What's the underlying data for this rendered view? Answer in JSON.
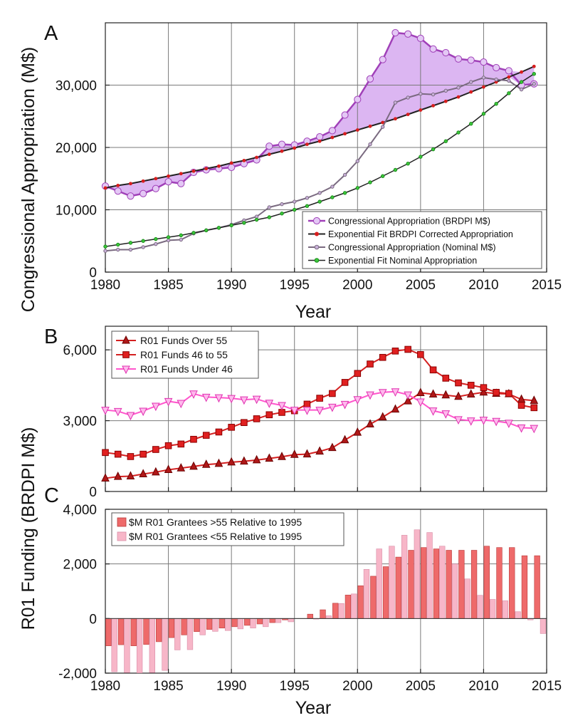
{
  "figure": {
    "ylabel_a": "Congressional Appropriation  (M$)",
    "ylabel_bc": "R01 Funding  (BRDPI M$)",
    "xlabel": "Year"
  },
  "colors": {
    "purple": "#a040b8",
    "purple_fill": "#dcb6f2",
    "purple_nominal": "#7a6a80",
    "black_fit": "#222222",
    "red_marker": "#d81e1e",
    "green_fit": "#1a8c1a",
    "dark_red_marker": "#b01818",
    "red_line": "#d42020",
    "pink_line": "#ff55cc",
    "bar_over": "#ee6a6a",
    "bar_under": "#f7b6c8"
  },
  "chart_data": [
    {
      "panel": "A",
      "type": "line",
      "label": "A",
      "xlabel": "Year",
      "ylabel": "Congressional Appropriation  (M$)",
      "xlim": [
        1980,
        2015
      ],
      "ylim": [
        0,
        40000
      ],
      "xticks": [
        1980,
        1985,
        1990,
        1995,
        2000,
        2005,
        2010,
        2015
      ],
      "yticks": [
        0,
        10000,
        20000,
        30000
      ],
      "ytick_labels": [
        "0",
        "10,000",
        "20,000",
        "30,000"
      ],
      "grid": true,
      "legend_position": "bottom-right",
      "x": [
        1980,
        1981,
        1982,
        1983,
        1984,
        1985,
        1986,
        1987,
        1988,
        1989,
        1990,
        1991,
        1992,
        1993,
        1994,
        1995,
        1996,
        1997,
        1998,
        1999,
        2000,
        2001,
        2002,
        2003,
        2004,
        2005,
        2006,
        2007,
        2008,
        2009,
        2010,
        2011,
        2012,
        2013,
        2014
      ],
      "series": [
        {
          "name": "Congressional Appropriation (BRDPI M$)",
          "values": [
            13800,
            13000,
            12200,
            12600,
            13400,
            14500,
            14200,
            16000,
            16400,
            16600,
            16800,
            17400,
            18000,
            20200,
            20500,
            20400,
            21000,
            21700,
            22700,
            25200,
            27700,
            31000,
            34100,
            38400,
            38200,
            37500,
            35800,
            35200,
            34200,
            34000,
            33700,
            32800,
            32300,
            30000,
            30200
          ]
        },
        {
          "name": "Exponential Fit BRDPI Corrected Appropriation",
          "values": [
            13500,
            13900,
            14200,
            14600,
            15000,
            15400,
            15800,
            16200,
            16600,
            17000,
            17500,
            17900,
            18400,
            18900,
            19400,
            19900,
            20500,
            21000,
            21600,
            22200,
            22800,
            23400,
            24000,
            24600,
            25300,
            26000,
            26700,
            27400,
            28100,
            28900,
            29700,
            30500,
            31300,
            32100,
            33000
          ]
        },
        {
          "name": "Congressional Appropriation (Nominal M$)",
          "values": [
            3400,
            3600,
            3600,
            4000,
            4500,
            5100,
            5200,
            6200,
            6700,
            7100,
            7600,
            8300,
            8900,
            10400,
            10900,
            11300,
            11900,
            12700,
            13700,
            15600,
            17800,
            20500,
            23300,
            27200,
            28000,
            28600,
            28500,
            29100,
            29600,
            30500,
            31200,
            30900,
            30700,
            29300,
            30200
          ]
        },
        {
          "name": "Exponential Fit Nominal Appropriation",
          "values": [
            4100,
            4400,
            4700,
            5000,
            5300,
            5600,
            5900,
            6300,
            6700,
            7100,
            7500,
            7900,
            8400,
            8800,
            9400,
            10000,
            10600,
            11300,
            12000,
            12700,
            13500,
            14400,
            15400,
            16400,
            17400,
            18500,
            19700,
            21000,
            22400,
            23800,
            25400,
            27000,
            28700,
            30500,
            31800
          ]
        }
      ]
    },
    {
      "panel": "B",
      "type": "line",
      "label": "B",
      "xlim": [
        1980,
        2015
      ],
      "ylim": [
        0,
        7000
      ],
      "xticks": [
        1980,
        1985,
        1990,
        1995,
        2000,
        2005,
        2010,
        2015
      ],
      "yticks": [
        0,
        3000,
        6000
      ],
      "ytick_labels": [
        "0",
        "3,000",
        "6,000"
      ],
      "grid": true,
      "legend_position": "top-left",
      "x": [
        1980,
        1981,
        1982,
        1983,
        1984,
        1985,
        1986,
        1987,
        1988,
        1989,
        1990,
        1991,
        1992,
        1993,
        1994,
        1995,
        1996,
        1997,
        1998,
        1999,
        2000,
        2001,
        2002,
        2003,
        2004,
        2005,
        2006,
        2007,
        2008,
        2009,
        2010,
        2011,
        2012,
        2013,
        2014
      ],
      "series": [
        {
          "name": "R01 Funds Over 55",
          "values": [
            560,
            630,
            650,
            740,
            820,
            920,
            990,
            1060,
            1140,
            1180,
            1240,
            1280,
            1330,
            1400,
            1470,
            1560,
            1580,
            1700,
            1850,
            2180,
            2500,
            2850,
            3150,
            3480,
            3830,
            4180,
            4120,
            4080,
            4020,
            4120,
            4200,
            4150,
            4130,
            3900,
            3850
          ]
        },
        {
          "name": "R01 Funds 46 to 55",
          "values": [
            1650,
            1580,
            1480,
            1580,
            1780,
            1940,
            2010,
            2210,
            2380,
            2520,
            2720,
            2920,
            3080,
            3250,
            3350,
            3420,
            3700,
            3950,
            4150,
            4620,
            5000,
            5400,
            5680,
            5950,
            6020,
            5800,
            5150,
            4800,
            4600,
            4500,
            4400,
            4200,
            4150,
            3650,
            3550
          ]
        },
        {
          "name": "R01 Funds Under 46",
          "values": [
            3450,
            3400,
            3230,
            3410,
            3620,
            3820,
            3740,
            4140,
            4000,
            3980,
            3950,
            3890,
            3920,
            3750,
            3650,
            3450,
            3450,
            3450,
            3580,
            3700,
            3900,
            4100,
            4200,
            4230,
            4100,
            3800,
            3420,
            3300,
            3050,
            3000,
            3030,
            2980,
            2900,
            2700,
            2680
          ]
        }
      ]
    },
    {
      "panel": "C",
      "type": "bar",
      "label": "C",
      "xlabel": "Year",
      "xlim": [
        1980,
        2015
      ],
      "ylim": [
        -2000,
        4000
      ],
      "xticks": [
        1980,
        1985,
        1990,
        1995,
        2000,
        2005,
        2010,
        2015
      ],
      "yticks": [
        -2000,
        0,
        2000,
        4000
      ],
      "ytick_labels": [
        "-2,000",
        "0",
        "2,000",
        "4,000"
      ],
      "grid": true,
      "legend_position": "top-left",
      "x": [
        1980,
        1981,
        1982,
        1983,
        1984,
        1985,
        1986,
        1987,
        1988,
        1989,
        1990,
        1991,
        1992,
        1993,
        1994,
        1995,
        1996,
        1997,
        1998,
        1999,
        2000,
        2001,
        2002,
        2003,
        2004,
        2005,
        2006,
        2007,
        2008,
        2009,
        2010,
        2011,
        2012,
        2013,
        2014
      ],
      "series": [
        {
          "name": "$M R01 Grantees >55 Relative to 1995",
          "values": [
            -1000,
            -960,
            -1000,
            -950,
            -850,
            -700,
            -600,
            -480,
            -400,
            -350,
            -300,
            -250,
            -200,
            -150,
            -50,
            0,
            160,
            320,
            560,
            860,
            1200,
            1550,
            1900,
            2250,
            2500,
            2600,
            2550,
            2500,
            2500,
            2500,
            2650,
            2600,
            2600,
            2300,
            2300
          ]
        },
        {
          "name": "$M R01 Grantees <55 Relative to 1995",
          "values": [
            -1950,
            -1980,
            -1990,
            -1980,
            -1900,
            -1150,
            -1140,
            -600,
            -470,
            -440,
            -380,
            -350,
            -300,
            -150,
            -120,
            0,
            -10,
            100,
            550,
            900,
            1800,
            2550,
            2650,
            3050,
            3250,
            3150,
            2650,
            2000,
            1450,
            850,
            700,
            650,
            250,
            -50,
            -550
          ]
        }
      ]
    }
  ]
}
